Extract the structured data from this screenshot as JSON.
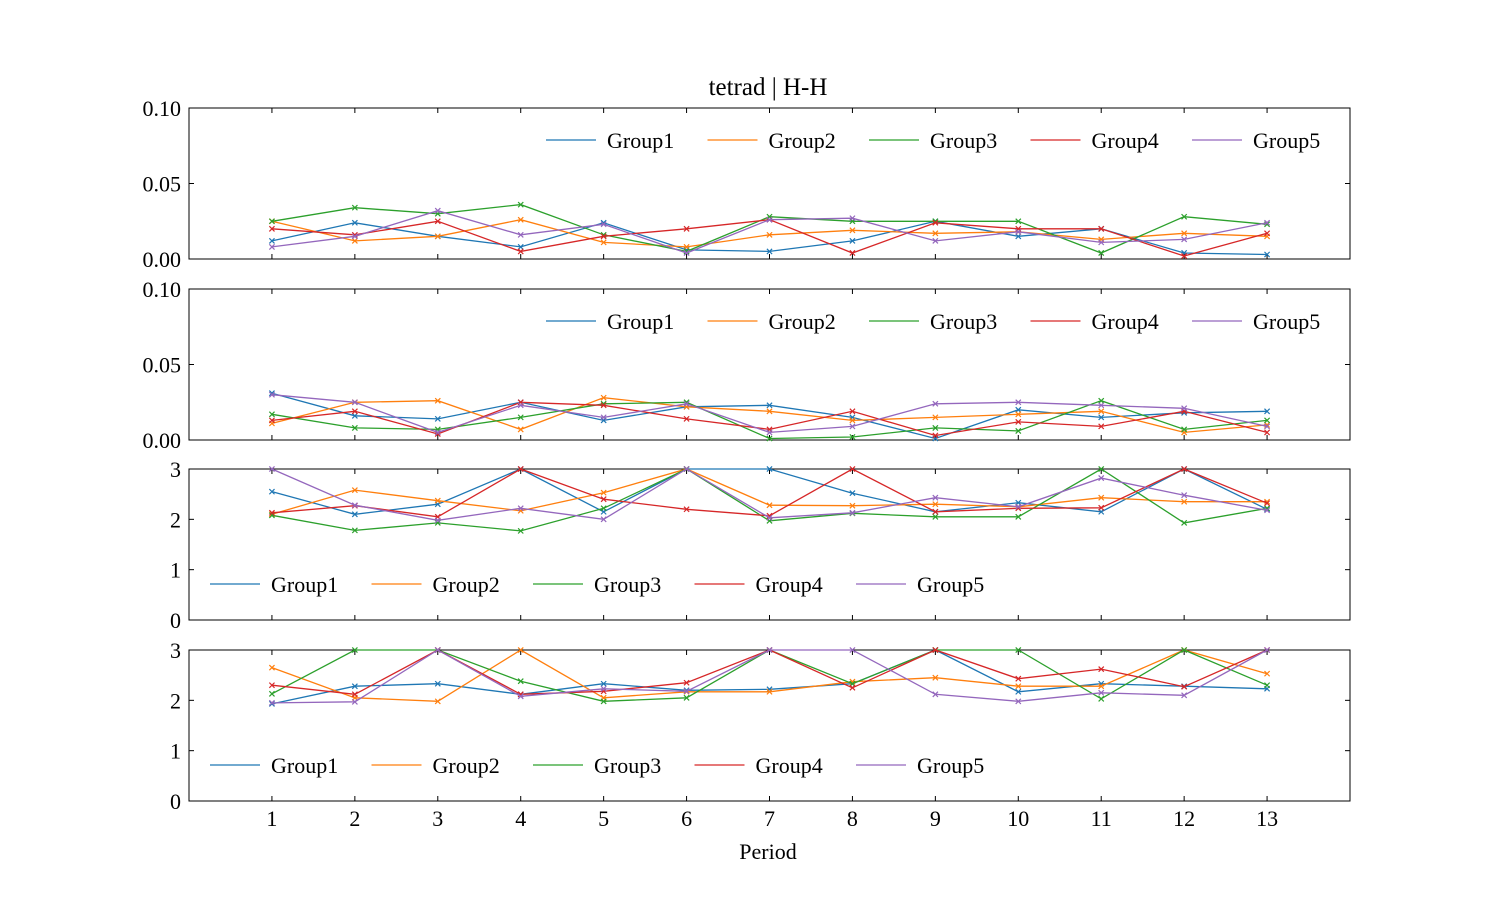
{
  "figure": {
    "title": "tetrad | H-H",
    "xlabel": "Period"
  },
  "colors": {
    "Group1": "#1f77b4",
    "Group2": "#ff7f0e",
    "Group3": "#2ca02c",
    "Group4": "#d62728",
    "Group5": "#9467bd"
  },
  "chart_data": [
    {
      "type": "line",
      "marker": "x",
      "x": [
        1,
        2,
        3,
        4,
        5,
        6,
        7,
        8,
        9,
        10,
        11,
        12,
        13
      ],
      "xticks": [
        1,
        2,
        3,
        4,
        5,
        6,
        7,
        8,
        9,
        10,
        11,
        12,
        13
      ],
      "xlim": [
        0,
        14
      ],
      "ylim": [
        0,
        0.1
      ],
      "yticks": [
        0.0,
        0.05,
        0.1
      ],
      "ytick_labels": [
        "0.00",
        "0.05",
        "0.10"
      ],
      "legend_position": "top-right",
      "series": [
        {
          "name": "Group1",
          "values": [
            0.012,
            0.024,
            0.015,
            0.008,
            0.024,
            0.006,
            0.005,
            0.012,
            0.025,
            0.015,
            0.02,
            0.004,
            0.003
          ]
        },
        {
          "name": "Group2",
          "values": [
            0.025,
            0.012,
            0.015,
            0.026,
            0.011,
            0.008,
            0.016,
            0.019,
            0.017,
            0.018,
            0.013,
            0.017,
            0.015
          ]
        },
        {
          "name": "Group3",
          "values": [
            0.025,
            0.034,
            0.03,
            0.036,
            0.016,
            0.005,
            0.028,
            0.025,
            0.025,
            0.025,
            0.004,
            0.028,
            0.023
          ]
        },
        {
          "name": "Group4",
          "values": [
            0.02,
            0.016,
            0.025,
            0.005,
            0.015,
            0.02,
            0.026,
            0.004,
            0.024,
            0.02,
            0.02,
            0.002,
            0.017
          ]
        },
        {
          "name": "Group5",
          "values": [
            0.008,
            0.015,
            0.032,
            0.016,
            0.023,
            0.004,
            0.026,
            0.027,
            0.012,
            0.018,
            0.011,
            0.013,
            0.024
          ]
        }
      ]
    },
    {
      "type": "line",
      "marker": "x",
      "x": [
        1,
        2,
        3,
        4,
        5,
        6,
        7,
        8,
        9,
        10,
        11,
        12,
        13
      ],
      "xticks": [
        1,
        2,
        3,
        4,
        5,
        6,
        7,
        8,
        9,
        10,
        11,
        12,
        13
      ],
      "xlim": [
        0,
        14
      ],
      "ylim": [
        0,
        0.1
      ],
      "yticks": [
        0.0,
        0.05,
        0.1
      ],
      "ytick_labels": [
        "0.00",
        "0.05",
        "0.10"
      ],
      "legend_position": "top-right",
      "series": [
        {
          "name": "Group1",
          "values": [
            0.031,
            0.016,
            0.014,
            0.025,
            0.013,
            0.022,
            0.023,
            0.015,
            0.001,
            0.02,
            0.015,
            0.018,
            0.019
          ]
        },
        {
          "name": "Group2",
          "values": [
            0.011,
            0.025,
            0.026,
            0.007,
            0.028,
            0.022,
            0.019,
            0.013,
            0.015,
            0.017,
            0.019,
            0.005,
            0.01
          ]
        },
        {
          "name": "Group3",
          "values": [
            0.017,
            0.008,
            0.007,
            0.015,
            0.024,
            0.025,
            0.001,
            0.002,
            0.008,
            0.006,
            0.026,
            0.007,
            0.013
          ]
        },
        {
          "name": "Group4",
          "values": [
            0.013,
            0.019,
            0.004,
            0.025,
            0.023,
            0.014,
            0.007,
            0.019,
            0.003,
            0.012,
            0.009,
            0.019,
            0.005
          ]
        },
        {
          "name": "Group5",
          "values": [
            0.03,
            0.025,
            0.005,
            0.023,
            0.015,
            0.024,
            0.005,
            0.009,
            0.024,
            0.025,
            0.023,
            0.021,
            0.009
          ]
        }
      ]
    },
    {
      "type": "line",
      "marker": "x",
      "x": [
        1,
        2,
        3,
        4,
        5,
        6,
        7,
        8,
        9,
        10,
        11,
        12,
        13
      ],
      "xticks": [
        1,
        2,
        3,
        4,
        5,
        6,
        7,
        8,
        9,
        10,
        11,
        12,
        13
      ],
      "xlim": [
        0,
        14
      ],
      "ylim": [
        0,
        3
      ],
      "yticks": [
        0,
        1,
        2,
        3
      ],
      "ytick_labels": [
        "0",
        "1",
        "2",
        "3"
      ],
      "legend_position": "lower-left",
      "series": [
        {
          "name": "Group1",
          "values": [
            2.55,
            2.1,
            2.3,
            3.0,
            2.15,
            3.0,
            3.0,
            2.52,
            2.15,
            2.33,
            2.15,
            3.0,
            2.2
          ]
        },
        {
          "name": "Group2",
          "values": [
            2.1,
            2.58,
            2.37,
            2.17,
            2.53,
            3.0,
            2.28,
            2.27,
            2.3,
            2.25,
            2.43,
            2.35,
            2.35
          ]
        },
        {
          "name": "Group3",
          "values": [
            2.08,
            1.78,
            1.93,
            1.77,
            2.22,
            3.0,
            1.97,
            2.12,
            2.05,
            2.05,
            3.0,
            1.93,
            2.22
          ]
        },
        {
          "name": "Group4",
          "values": [
            2.13,
            2.27,
            2.05,
            3.0,
            2.4,
            2.2,
            2.07,
            3.0,
            2.15,
            2.22,
            2.23,
            3.0,
            2.32
          ]
        },
        {
          "name": "Group5",
          "values": [
            3.0,
            2.28,
            1.98,
            2.22,
            2.0,
            3.0,
            2.03,
            2.13,
            2.43,
            2.25,
            2.82,
            2.48,
            2.18
          ]
        }
      ]
    },
    {
      "type": "line",
      "marker": "x",
      "x": [
        1,
        2,
        3,
        4,
        5,
        6,
        7,
        8,
        9,
        10,
        11,
        12,
        13
      ],
      "xticks": [
        1,
        2,
        3,
        4,
        5,
        6,
        7,
        8,
        9,
        10,
        11,
        12,
        13
      ],
      "xlim": [
        0,
        14
      ],
      "ylim": [
        0,
        3
      ],
      "yticks": [
        0,
        1,
        2,
        3
      ],
      "ytick_labels": [
        "0",
        "1",
        "2",
        "3"
      ],
      "legend_position": "lower-left",
      "series": [
        {
          "name": "Group1",
          "values": [
            1.93,
            2.28,
            2.33,
            2.12,
            2.33,
            2.2,
            2.22,
            2.33,
            3.0,
            2.17,
            2.33,
            2.28,
            2.23
          ]
        },
        {
          "name": "Group2",
          "values": [
            2.65,
            2.05,
            1.98,
            3.0,
            2.05,
            2.17,
            2.17,
            2.37,
            2.45,
            2.28,
            2.28,
            3.0,
            2.53
          ]
        },
        {
          "name": "Group3",
          "values": [
            2.13,
            3.0,
            3.0,
            2.38,
            1.98,
            2.05,
            3.0,
            2.33,
            3.0,
            3.0,
            2.03,
            3.0,
            2.3
          ]
        },
        {
          "name": "Group4",
          "values": [
            2.3,
            2.12,
            3.0,
            2.12,
            2.18,
            2.35,
            3.0,
            2.25,
            3.0,
            2.43,
            2.62,
            2.27,
            3.0
          ]
        },
        {
          "name": "Group5",
          "values": [
            1.95,
            1.97,
            3.0,
            2.08,
            2.23,
            2.18,
            3.0,
            3.0,
            2.12,
            1.98,
            2.15,
            2.1,
            3.0
          ]
        }
      ]
    }
  ]
}
